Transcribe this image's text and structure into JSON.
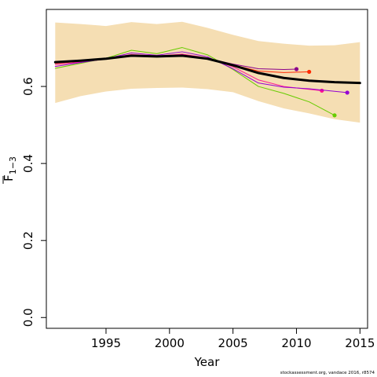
{
  "chart_data": {
    "type": "line",
    "title": "",
    "xlabel": "Year",
    "ylabel": "F",
    "ylabel_subscript": "1−3",
    "xlim": [
      1990.3,
      2015.6
    ],
    "ylim": [
      -0.028,
      0.8
    ],
    "xticks": [
      1995,
      2000,
      2005,
      2010,
      2015
    ],
    "xtick_labels": [
      "1995",
      "2000",
      "2005",
      "2010",
      "2015"
    ],
    "yticks": [
      0.0,
      0.2,
      0.4,
      0.6
    ],
    "ytick_labels": [
      "0.0",
      "0.2",
      "0.4",
      "0.6"
    ],
    "grid": false,
    "band": {
      "color": "#f5deb3",
      "x": [
        1991,
        1993,
        1995,
        1997,
        1999,
        2001,
        2003,
        2005,
        2007,
        2009,
        2011,
        2013,
        2015
      ],
      "upper": [
        0.766,
        0.762,
        0.757,
        0.767,
        0.762,
        0.768,
        0.752,
        0.734,
        0.718,
        0.711,
        0.706,
        0.707,
        0.715
      ],
      "lower": [
        0.557,
        0.575,
        0.587,
        0.594,
        0.596,
        0.597,
        0.593,
        0.585,
        0.562,
        0.543,
        0.53,
        0.515,
        0.506
      ]
    },
    "series": [
      {
        "color": "#000000",
        "width": 3,
        "x": [
          1991,
          1993,
          1995,
          1997,
          1999,
          2001,
          2003,
          2005,
          2007,
          2009,
          2011,
          2013,
          2015
        ],
        "values": [
          0.663,
          0.667,
          0.672,
          0.68,
          0.678,
          0.68,
          0.672,
          0.655,
          0.635,
          0.622,
          0.615,
          0.611,
          0.609
        ]
      },
      {
        "color": "#8b008b",
        "width": 1,
        "x": [
          1991,
          1993,
          1995,
          1997,
          1999,
          2001,
          2003,
          2005,
          2007,
          2009,
          2010
        ],
        "values": [
          0.661,
          0.666,
          0.671,
          0.679,
          0.677,
          0.68,
          0.673,
          0.658,
          0.646,
          0.644,
          0.645
        ],
        "end_marker": true
      },
      {
        "color": "#ff2a00",
        "width": 1,
        "x": [
          1991,
          1993,
          1995,
          1997,
          1999,
          2001,
          2003,
          2005,
          2007,
          2009,
          2011
        ],
        "values": [
          0.66,
          0.665,
          0.671,
          0.68,
          0.677,
          0.681,
          0.672,
          0.656,
          0.64,
          0.636,
          0.638
        ],
        "end_marker": true
      },
      {
        "color": "#ff1493",
        "width": 1,
        "x": [
          1991,
          1993,
          1995,
          1997,
          1999,
          2001,
          2003,
          2005,
          2007,
          2009,
          2010,
          2012
        ],
        "values": [
          0.657,
          0.663,
          0.671,
          0.683,
          0.679,
          0.684,
          0.674,
          0.651,
          0.617,
          0.6,
          0.596,
          0.589
        ],
        "end_marker": true
      },
      {
        "color": "#66cc00",
        "width": 1,
        "x": [
          1991,
          1993,
          1995,
          1997,
          1999,
          2001,
          2003,
          2005,
          2007,
          2009,
          2011,
          2013
        ],
        "values": [
          0.647,
          0.66,
          0.673,
          0.694,
          0.685,
          0.701,
          0.682,
          0.644,
          0.6,
          0.582,
          0.56,
          0.525
        ],
        "end_marker": true
      },
      {
        "color": "#9400d3",
        "width": 1,
        "x": [
          1991,
          1993,
          1995,
          1997,
          1999,
          2001,
          2003,
          2005,
          2007,
          2009,
          2011,
          2014
        ],
        "values": [
          0.652,
          0.662,
          0.672,
          0.687,
          0.681,
          0.69,
          0.677,
          0.646,
          0.609,
          0.598,
          0.594,
          0.584
        ],
        "end_marker": true
      }
    ],
    "footnote": "stockassessment.org,  vandace  2016, r8574"
  }
}
